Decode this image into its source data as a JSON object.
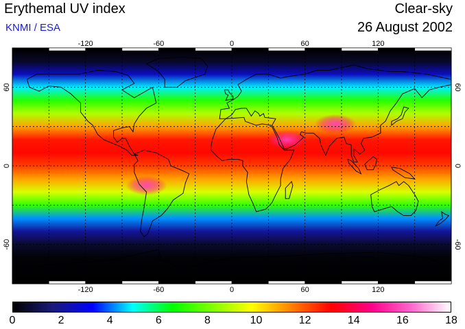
{
  "header": {
    "title": "Erythemal UV index",
    "credit": "KNMI / ESA",
    "condition": "Clear-sky",
    "date": "26 August 2002"
  },
  "map": {
    "projection": "equirectangular",
    "lon_range": [
      -180,
      180
    ],
    "lat_range": [
      -90,
      90
    ],
    "lon_ticks": [
      "-120",
      "-60",
      "0",
      "60",
      "120"
    ],
    "lat_ticks": [
      "60",
      "0",
      "-60"
    ],
    "gridlines": "dotted, every 30 degrees",
    "features": [
      "coastlines",
      "UV index color field"
    ]
  },
  "colorbar": {
    "min": 0,
    "max": 18,
    "labels": [
      "0",
      "2",
      "4",
      "6",
      "8",
      "10",
      "12",
      "14",
      "16",
      "18"
    ],
    "colors": [
      "#000000",
      "#1a1a7a",
      "#0000ff",
      "#00ffff",
      "#00ff00",
      "#80ff00",
      "#ffff00",
      "#ff8000",
      "#ff0000",
      "#ff0088",
      "#ff66cc",
      "#ffffff"
    ]
  },
  "field": {
    "latitude_profile": [
      {
        "lat": 90,
        "uv": 0.0
      },
      {
        "lat": 80,
        "uv": 0.5
      },
      {
        "lat": 70,
        "uv": 2.5
      },
      {
        "lat": 60,
        "uv": 4.8
      },
      {
        "lat": 50,
        "uv": 7.0
      },
      {
        "lat": 40,
        "uv": 8.8
      },
      {
        "lat": 30,
        "uv": 11.0
      },
      {
        "lat": 20,
        "uv": 12.8
      },
      {
        "lat": 10,
        "uv": 13.0
      },
      {
        "lat": 0,
        "uv": 12.3
      },
      {
        "lat": -10,
        "uv": 11.0
      },
      {
        "lat": -20,
        "uv": 9.3
      },
      {
        "lat": -30,
        "uv": 7.2
      },
      {
        "lat": -40,
        "uv": 4.2
      },
      {
        "lat": -50,
        "uv": 2.0
      },
      {
        "lat": -60,
        "uv": 0.6
      },
      {
        "lat": -70,
        "uv": 0.1
      },
      {
        "lat": -90,
        "uv": 0.0
      }
    ],
    "highlights": [
      {
        "region": "Tibetan Plateau",
        "lon": 85,
        "lat": 32,
        "uv": 15.5
      },
      {
        "region": "Andes",
        "lon": -70,
        "lat": -15,
        "uv": 15.0
      },
      {
        "region": "Arabian Peninsula",
        "lon": 45,
        "lat": 20,
        "uv": 14.0
      }
    ]
  }
}
